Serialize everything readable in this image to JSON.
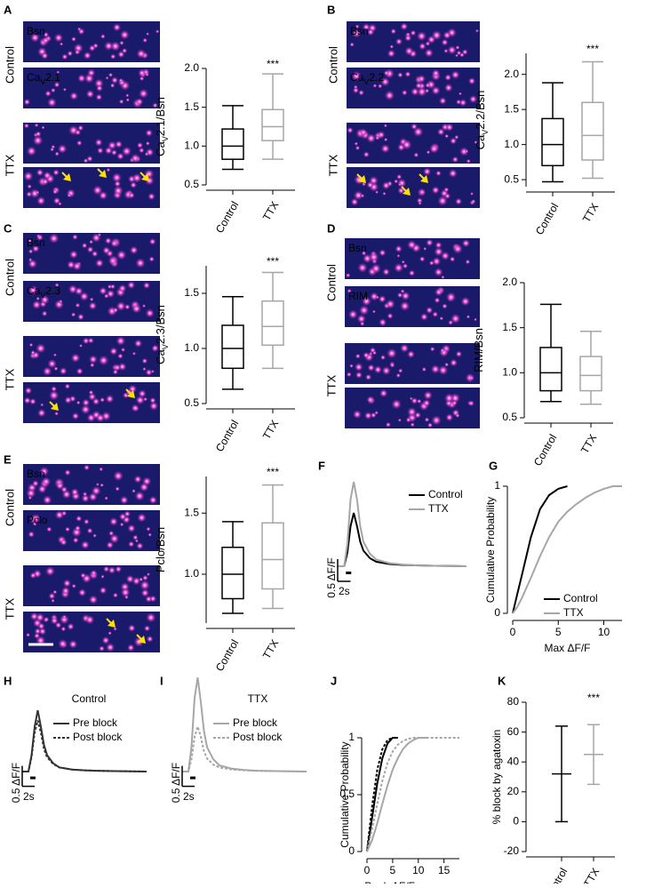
{
  "image_panels": [
    {
      "groups": [
        {
          "label": "Control",
          "channels": [
            [
              "Bsn"
            ],
            [
              "Ca",
              "V",
              "2.1"
            ]
          ]
        },
        {
          "label": "TTX"
        }
      ]
    },
    {
      "groups": [
        {
          "label": "Control",
          "channels": [
            [
              "Bsn"
            ],
            [
              "Ca",
              "V",
              "2.2"
            ]
          ]
        },
        {
          "label": "TTX"
        }
      ]
    },
    {
      "groups": [
        {
          "label": "Control",
          "channels": [
            [
              "Bsn"
            ],
            [
              "Ca",
              "V",
              "2.3"
            ]
          ]
        },
        {
          "label": "TTX"
        }
      ]
    },
    {
      "groups": [
        {
          "label": "Control",
          "channels": [
            [
              "Bsn"
            ],
            [
              "RIM"
            ]
          ]
        },
        {
          "label": "TTX"
        }
      ]
    },
    {
      "groups": [
        {
          "label": "Control",
          "channels": [
            [
              "Bsn"
            ],
            [
              "Pclo"
            ]
          ]
        },
        {
          "label": "TTX"
        }
      ]
    }
  ],
  "channel_colors": [
    "#ff2b2b",
    "#3fdc3f"
  ],
  "chart_data": [
    {
      "panel": "A",
      "type": "box",
      "ylabel": [
        "Ca",
        "V",
        "2.1/Bsn"
      ],
      "categories": [
        "Control",
        "TTX"
      ],
      "values": [
        [
          0.7,
          0.83,
          1.0,
          1.22,
          1.52
        ],
        [
          0.83,
          1.07,
          1.25,
          1.47,
          1.93
        ]
      ],
      "colors": [
        "#000000",
        "#a6a6a6"
      ],
      "ylim": [
        0.5,
        2.0
      ],
      "yticks": [
        0.5,
        {
          "value": 1,
          "label": "1.0"
        },
        1.5,
        {
          "value": 2,
          "label": "2.0"
        }
      ],
      "annotation": "***"
    },
    {
      "panel": "B",
      "type": "box",
      "ylabel": [
        "Ca",
        "V",
        "2.2/Bsn"
      ],
      "categories": [
        "Control",
        "TTX"
      ],
      "values": [
        [
          0.47,
          0.7,
          1.0,
          1.37,
          1.88
        ],
        [
          0.52,
          0.78,
          1.13,
          1.6,
          2.18
        ]
      ],
      "colors": [
        "#000000",
        "#a6a6a6"
      ],
      "ylim": [
        0.4,
        2.3
      ],
      "yticks": [
        0.5,
        {
          "value": 1,
          "label": "1.0"
        },
        1.5,
        {
          "value": 2,
          "label": "2.0"
        }
      ],
      "annotation": "***"
    },
    {
      "panel": "C",
      "type": "box",
      "ylabel": [
        "Ca",
        "V",
        "2.3/Bsn"
      ],
      "categories": [
        "Control",
        "TTX"
      ],
      "values": [
        [
          0.63,
          0.82,
          1.0,
          1.21,
          1.47
        ],
        [
          0.82,
          1.03,
          1.2,
          1.43,
          1.69
        ]
      ],
      "colors": [
        "#000000",
        "#a6a6a6"
      ],
      "ylim": [
        0.5,
        1.75
      ],
      "yticks": [
        0.5,
        {
          "value": 1,
          "label": "1.0"
        },
        1.5
      ],
      "annotation": "***"
    },
    {
      "panel": "D",
      "type": "box",
      "ylabel": [
        "RIM/Bsn"
      ],
      "categories": [
        "Control",
        "TTX"
      ],
      "values": [
        [
          0.68,
          0.8,
          1.0,
          1.28,
          1.76
        ],
        [
          0.65,
          0.8,
          0.97,
          1.18,
          1.46
        ]
      ],
      "colors": [
        "#000000",
        "#a6a6a6"
      ],
      "ylim": [
        0.5,
        2.0
      ],
      "yticks": [
        0.5,
        {
          "value": 1,
          "label": "1.0"
        },
        1.5,
        {
          "value": 2,
          "label": "2.0"
        }
      ]
    },
    {
      "panel": "E",
      "type": "box",
      "ylabel": [
        "Pclo/Bsn"
      ],
      "categories": [
        "Control",
        "TTX"
      ],
      "values": [
        [
          0.68,
          0.8,
          1.0,
          1.22,
          1.43
        ],
        [
          0.72,
          0.88,
          1.12,
          1.42,
          1.73
        ]
      ],
      "colors": [
        "#000000",
        "#a6a6a6"
      ],
      "ylim": [
        0.6,
        1.8
      ],
      "yticks": [
        {
          "value": 1,
          "label": "1.0"
        },
        1.5
      ],
      "annotation": "***"
    },
    {
      "panel": "F",
      "type": "line",
      "x": [
        0,
        1,
        1.5,
        2,
        2.5,
        3,
        3.5,
        4,
        5,
        6,
        8,
        10,
        12,
        15,
        20
      ],
      "series": [
        {
          "name": "Control",
          "color": "#000000",
          "values": [
            0,
            0,
            0.3,
            0.9,
            1.2,
            0.9,
            0.55,
            0.35,
            0.18,
            0.1,
            0.05,
            0.03,
            0.02,
            0.01,
            0
          ]
        },
        {
          "name": "TTX",
          "color": "#a6a6a6",
          "values": [
            0,
            0,
            0.5,
            1.5,
            1.9,
            1.5,
            0.9,
            0.55,
            0.28,
            0.15,
            0.07,
            0.04,
            0.02,
            0.01,
            0
          ]
        }
      ],
      "xlim": [
        0,
        20
      ],
      "ylim": [
        -0.1,
        2
      ],
      "scalebar": {
        "y": {
          "value": 0.5,
          "label": "0.5 ΔF/F"
        },
        "x": {
          "value": 2,
          "label": "2s"
        }
      }
    },
    {
      "panel": "G",
      "type": "line",
      "x": [
        0,
        0.5,
        1,
        1.5,
        2,
        3,
        4,
        5,
        6,
        7,
        8,
        9,
        10,
        11,
        12
      ],
      "series": [
        {
          "name": "Control",
          "color": "#000000",
          "values": [
            0,
            0.15,
            0.3,
            0.45,
            0.6,
            0.82,
            0.93,
            0.98,
            1,
            null,
            null,
            null,
            null,
            null,
            null
          ]
        },
        {
          "name": "TTX",
          "color": "#a6a6a6",
          "values": [
            0,
            0.05,
            0.12,
            0.2,
            0.28,
            0.45,
            0.6,
            0.72,
            0.8,
            0.86,
            0.91,
            0.95,
            0.98,
            1,
            1
          ]
        }
      ],
      "xlim": [
        0,
        12
      ],
      "ylim": [
        0,
        1
      ],
      "xticks": [
        0,
        5,
        10
      ],
      "yticks": [
        0,
        1
      ],
      "xlabel": "Max ΔF/F",
      "ylabel": "Cumulative Probability"
    },
    {
      "panel": "H",
      "type": "line",
      "title": "Control",
      "x": [
        0,
        1,
        1.5,
        2,
        2.5,
        3,
        3.5,
        4,
        5,
        6,
        8,
        10,
        12,
        15,
        20
      ],
      "series": [
        {
          "name": "Pre block",
          "color": "#333333",
          "style": "solid",
          "values": [
            0,
            0,
            0.4,
            1.1,
            1.5,
            1.1,
            0.65,
            0.4,
            0.2,
            0.1,
            0.05,
            0.03,
            0.02,
            0.01,
            0
          ]
        },
        {
          "name": "Post block",
          "color": "#333333",
          "style": "dotted",
          "values": [
            0,
            0,
            0.35,
            0.95,
            1.25,
            0.95,
            0.55,
            0.35,
            0.18,
            0.1,
            0.05,
            0.03,
            0.02,
            0.01,
            0
          ]
        }
      ],
      "xlim": [
        0,
        20
      ],
      "ylim": [
        -0.1,
        1.8
      ],
      "scalebar": {
        "y": {
          "value": 0.5,
          "label": "0.5 ΔF/F"
        },
        "x": {
          "value": 2,
          "label": "2s"
        }
      }
    },
    {
      "panel": "I",
      "type": "line",
      "title": "TTX",
      "x": [
        0,
        1,
        1.5,
        2,
        2.5,
        3,
        3.5,
        4,
        5,
        6,
        8,
        10,
        12,
        15,
        20
      ],
      "series": [
        {
          "name": "Pre block",
          "color": "#a6a6a6",
          "style": "solid",
          "values": [
            0,
            0,
            0.6,
            1.8,
            2.3,
            1.7,
            1.0,
            0.6,
            0.3,
            0.15,
            0.07,
            0.04,
            0.02,
            0.01,
            0
          ]
        },
        {
          "name": "Post block",
          "color": "#a6a6a6",
          "style": "dotted",
          "values": [
            0,
            0,
            0.3,
            0.85,
            1.1,
            0.85,
            0.5,
            0.32,
            0.17,
            0.1,
            0.05,
            0.03,
            0.02,
            0.01,
            0
          ]
        }
      ],
      "xlim": [
        0,
        20
      ],
      "ylim": [
        -0.1,
        2.4
      ],
      "scalebar": {
        "y": {
          "value": 0.5,
          "label": "0.5 ΔF/F"
        },
        "x": {
          "value": 2,
          "label": "2s"
        }
      }
    },
    {
      "panel": "J",
      "type": "line",
      "x": [
        0,
        1,
        2,
        3,
        4,
        5,
        6,
        7,
        8,
        9,
        10,
        12,
        15,
        18
      ],
      "series": [
        {
          "color": "#000000",
          "style": "solid",
          "values": [
            0,
            0.3,
            0.6,
            0.82,
            0.95,
            1,
            1,
            null,
            null,
            null,
            null,
            null,
            null,
            null
          ]
        },
        {
          "color": "#000000",
          "style": "dotted",
          "values": [
            0,
            0.4,
            0.72,
            0.9,
            0.98,
            1,
            1,
            null,
            null,
            null,
            null,
            null,
            null,
            null
          ]
        },
        {
          "color": "#a6a6a6",
          "style": "solid",
          "values": [
            0,
            0.1,
            0.25,
            0.42,
            0.58,
            0.72,
            0.82,
            0.9,
            0.95,
            0.98,
            1,
            1,
            null,
            null
          ]
        },
        {
          "color": "#a6a6a6",
          "style": "dotted",
          "values": [
            0,
            0.2,
            0.42,
            0.62,
            0.78,
            0.88,
            0.94,
            0.97,
            0.99,
            1,
            1,
            1,
            1,
            1
          ]
        }
      ],
      "xlim": [
        0,
        18
      ],
      "ylim": [
        0,
        1
      ],
      "xticks": [
        0,
        5,
        10,
        15
      ],
      "yticks": [
        0,
        0.5,
        1
      ],
      "xlabel": "Peak ΔF/F response",
      "ylabel": "Cumulative Probability"
    },
    {
      "panel": "K",
      "type": "errorbar",
      "categories": [
        "Control",
        "TTX"
      ],
      "values": [
        32,
        45
      ],
      "errors": [
        32,
        20
      ],
      "colors": [
        "#000000",
        "#a6a6a6"
      ],
      "ylim": [
        -20,
        80
      ],
      "yticks": [
        -20,
        0,
        20,
        40,
        60,
        80
      ],
      "ylabel": "% block by  agatoxin",
      "annotation": "***"
    }
  ]
}
